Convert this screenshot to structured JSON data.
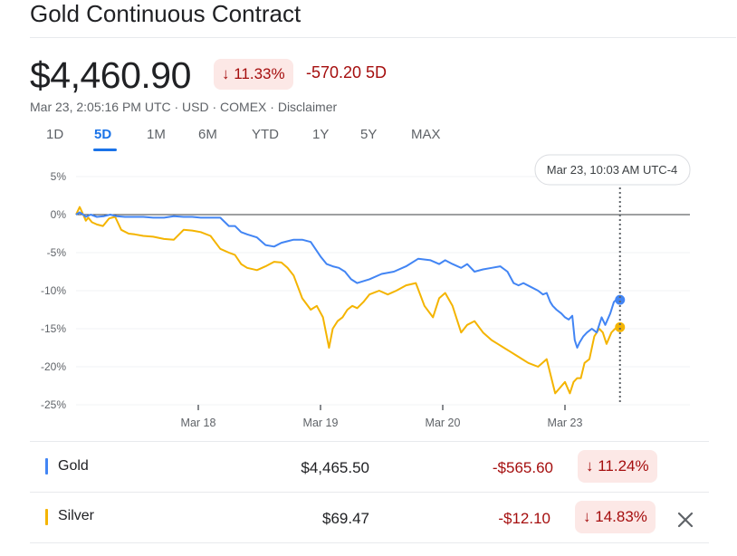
{
  "header": {
    "title": "Gold Continuous Contract",
    "price": "$4,460.90",
    "change_pct": "11.33%",
    "change_arrow": "↓",
    "change_5d": "-570.20 5D",
    "meta": "Mar 23, 2:05:16 PM UTC · USD · COMEX · Disclaimer"
  },
  "tabs": [
    {
      "label": "1D"
    },
    {
      "label": "5D"
    },
    {
      "label": "1M"
    },
    {
      "label": "6M"
    },
    {
      "label": "YTD"
    },
    {
      "label": "1Y"
    },
    {
      "label": "5Y"
    },
    {
      "label": "MAX"
    }
  ],
  "active_tab": "5D",
  "tooltip": "Mar 23, 10:03 AM UTC-4",
  "colors": {
    "gold_series": "#4285f4",
    "silver_series": "#f4b400",
    "negative": "#a50e0e",
    "negative_bg": "#fce8e6",
    "accent": "#1a73e8"
  },
  "chart_data": {
    "type": "line",
    "ylim": [
      -25,
      5
    ],
    "yticks": [
      "5%",
      "0%",
      "-5%",
      "-10%",
      "-15%",
      "-20%",
      "-25%"
    ],
    "ytick_values": [
      5,
      0,
      -5,
      -10,
      -15,
      -20,
      -25
    ],
    "xlabels": [
      "Mar 18",
      "Mar 19",
      "Mar 20",
      "Mar 23"
    ],
    "xlabel_positions": [
      1,
      2,
      3,
      4
    ],
    "xlim": [
      0,
      5
    ],
    "grid": true,
    "baseline": 0,
    "crosshair_x": 4.45,
    "series": [
      {
        "name": "Gold",
        "x": [
          0.0,
          0.03,
          0.05,
          0.08,
          0.12,
          0.17,
          0.23,
          0.28,
          0.33,
          0.4,
          0.48,
          0.55,
          0.63,
          0.72,
          0.8,
          0.88,
          0.95,
          1.02,
          1.1,
          1.18,
          1.25,
          1.3,
          1.35,
          1.4,
          1.48,
          1.55,
          1.62,
          1.68,
          1.73,
          1.78,
          1.85,
          1.92,
          2.0,
          2.05,
          2.1,
          2.15,
          2.2,
          2.25,
          2.3,
          2.4,
          2.5,
          2.6,
          2.7,
          2.8,
          2.9,
          2.97,
          3.02,
          3.08,
          3.15,
          3.2,
          3.26,
          3.33,
          3.4,
          3.47,
          3.53,
          3.58,
          3.62,
          3.66,
          3.72,
          3.78,
          3.82,
          3.85,
          3.88,
          3.9,
          3.93,
          3.97,
          4.0,
          4.03,
          4.06,
          4.08,
          4.1,
          4.12,
          4.15,
          4.18,
          4.22,
          4.26,
          4.3,
          4.33,
          4.37,
          4.4,
          4.43,
          4.45
        ],
        "values": [
          0,
          0.3,
          0.1,
          -0.3,
          0,
          -0.3,
          -0.2,
          0,
          -0.2,
          -0.3,
          -0.3,
          -0.3,
          -0.4,
          -0.4,
          -0.2,
          -0.3,
          -0.3,
          -0.4,
          -0.4,
          -0.4,
          -1.5,
          -1.5,
          -2.3,
          -2.6,
          -3.0,
          -4.0,
          -4.2,
          -3.7,
          -3.5,
          -3.3,
          -3.3,
          -3.6,
          -5.5,
          -6.5,
          -6.8,
          -7.0,
          -7.5,
          -8.5,
          -9.0,
          -8.5,
          -7.8,
          -7.5,
          -6.8,
          -5.8,
          -6.0,
          -6.5,
          -6.0,
          -6.5,
          -7.0,
          -6.5,
          -7.5,
          -7.2,
          -7.0,
          -6.8,
          -7.5,
          -9.0,
          -9.3,
          -9.0,
          -9.5,
          -10.0,
          -10.5,
          -10.3,
          -11.5,
          -12.0,
          -12.5,
          -13.0,
          -13.5,
          -13.8,
          -13.3,
          -16.5,
          -17.5,
          -16.8,
          -16.0,
          -15.5,
          -15.0,
          -15.5,
          -13.5,
          -14.5,
          -13.0,
          -11.5,
          -11.0,
          -11.2
        ]
      },
      {
        "name": "Silver",
        "x": [
          0.0,
          0.03,
          0.05,
          0.08,
          0.1,
          0.13,
          0.17,
          0.22,
          0.27,
          0.32,
          0.37,
          0.43,
          0.48,
          0.55,
          0.63,
          0.72,
          0.8,
          0.88,
          0.95,
          1.02,
          1.1,
          1.18,
          1.25,
          1.3,
          1.35,
          1.4,
          1.48,
          1.55,
          1.62,
          1.68,
          1.73,
          1.78,
          1.85,
          1.92,
          1.97,
          2.02,
          2.07,
          2.1,
          2.14,
          2.18,
          2.22,
          2.26,
          2.3,
          2.35,
          2.4,
          2.48,
          2.55,
          2.62,
          2.7,
          2.78,
          2.85,
          2.92,
          2.97,
          3.02,
          3.08,
          3.15,
          3.2,
          3.26,
          3.33,
          3.4,
          3.45,
          3.5,
          3.55,
          3.6,
          3.65,
          3.7,
          3.78,
          3.85,
          3.92,
          4.0,
          4.04,
          4.07,
          4.1,
          4.13,
          4.16,
          4.2,
          4.24,
          4.28,
          4.31,
          4.34,
          4.38,
          4.41,
          4.43,
          4.45
        ],
        "values": [
          0,
          1.0,
          0.3,
          -0.8,
          -0.4,
          -1.0,
          -1.3,
          -1.5,
          -0.5,
          -0.3,
          -2.0,
          -2.5,
          -2.6,
          -2.8,
          -2.9,
          -3.2,
          -3.3,
          -2.0,
          -2.1,
          -2.3,
          -2.8,
          -4.5,
          -5.0,
          -5.3,
          -6.5,
          -7.0,
          -7.3,
          -6.8,
          -6.2,
          -6.3,
          -7.0,
          -8.0,
          -11.0,
          -12.5,
          -12.0,
          -13.5,
          -17.5,
          -15.0,
          -14.0,
          -13.5,
          -12.5,
          -12.0,
          -12.3,
          -11.5,
          -10.5,
          -10.0,
          -10.5,
          -10.0,
          -9.3,
          -9.0,
          -12.0,
          -13.5,
          -11.0,
          -10.3,
          -12.0,
          -15.5,
          -14.5,
          -14.0,
          -15.5,
          -16.5,
          -17.0,
          -17.5,
          -18.0,
          -18.5,
          -19.0,
          -19.5,
          -20.0,
          -19.0,
          -23.5,
          -22.0,
          -23.5,
          -22.0,
          -21.5,
          -21.5,
          -19.5,
          -19.0,
          -16.0,
          -15.0,
          -15.5,
          -17.0,
          -15.5,
          -15.0,
          -14.9,
          -14.8
        ]
      }
    ]
  },
  "table": {
    "rows": [
      {
        "name": "Gold",
        "value": "$4,465.50",
        "change": "-$565.60",
        "change_pct": "11.24%",
        "arrow": "↓"
      },
      {
        "name": "Silver",
        "value": "$69.47",
        "change": "-$12.10",
        "change_pct": "14.83%",
        "arrow": "↓"
      }
    ]
  },
  "icons": {
    "close": "close-icon",
    "down_arrow": "arrow-down-icon"
  }
}
